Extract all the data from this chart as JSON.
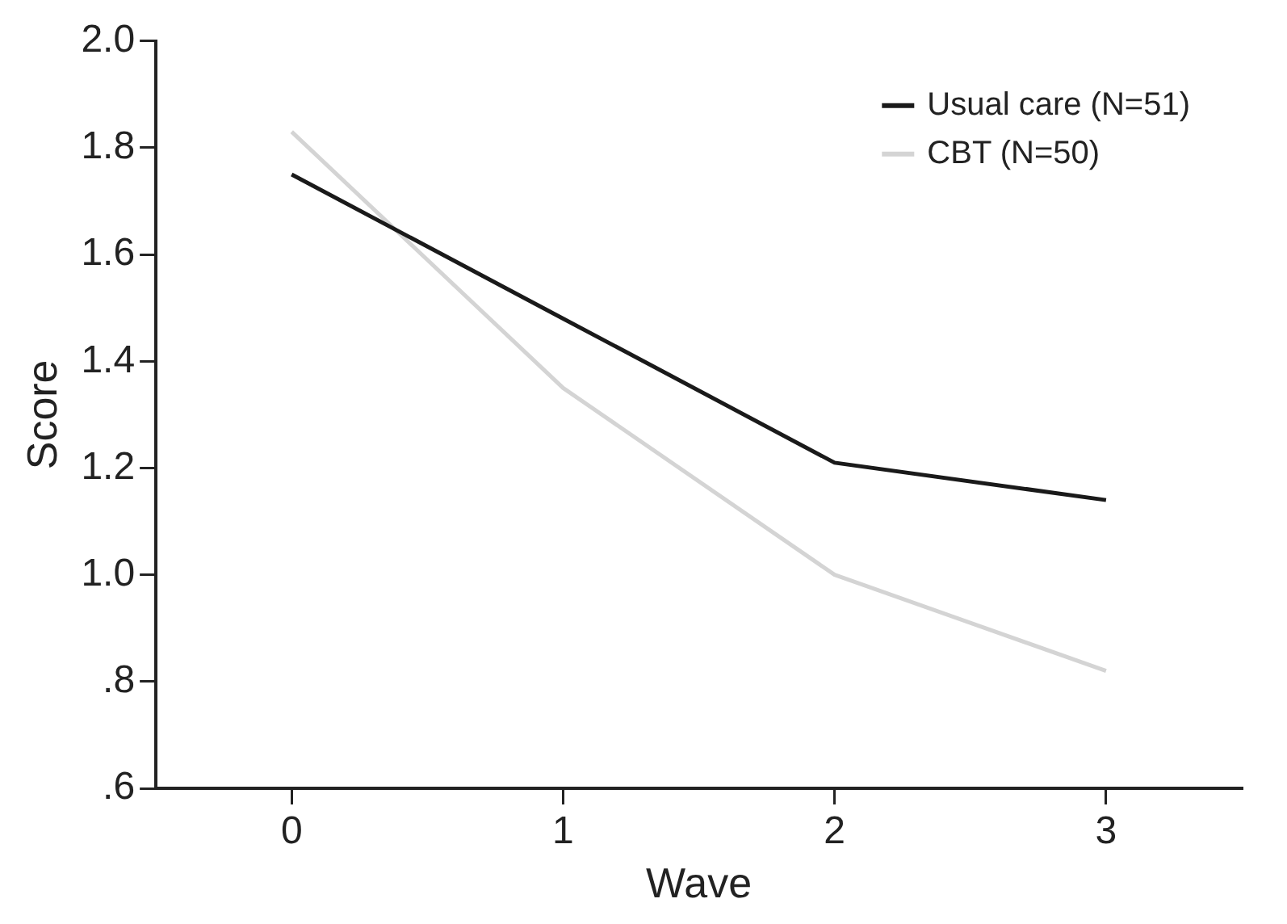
{
  "chart_data": {
    "type": "line",
    "xlabel": "Wave",
    "ylabel": "Score",
    "x": [
      0,
      1,
      2,
      3
    ],
    "series": [
      {
        "name": "Usual care (N=51)",
        "color": "#1a1a1a",
        "values": [
          1.75,
          1.48,
          1.21,
          1.14
        ]
      },
      {
        "name": "CBT (N=50)",
        "color": "#d4d4d4",
        "values": [
          1.83,
          1.35,
          1.0,
          0.82
        ]
      }
    ],
    "xlim": [
      -0.5,
      3.5
    ],
    "xticks": [
      0,
      1,
      2,
      3
    ],
    "ylim": [
      0.6,
      2.0
    ],
    "yticks": [
      {
        "value": 0.6,
        "label": ".6"
      },
      {
        "value": 0.8,
        "label": ".8"
      },
      {
        "value": 1.0,
        "label": "1.0"
      },
      {
        "value": 1.2,
        "label": "1.2"
      },
      {
        "value": 1.4,
        "label": "1.4"
      },
      {
        "value": 1.6,
        "label": "1.6"
      },
      {
        "value": 1.8,
        "label": "1.8"
      },
      {
        "value": 2.0,
        "label": "2.0"
      }
    ],
    "grid": false,
    "legend": "top right",
    "marker": "none",
    "line_style": "solid"
  }
}
